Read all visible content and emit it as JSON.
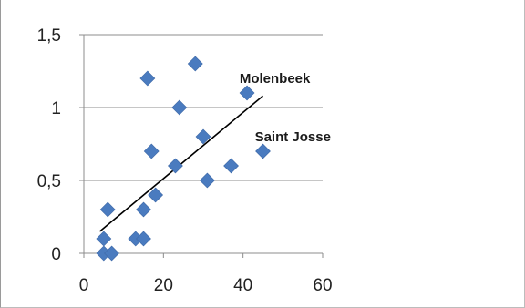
{
  "chart_data": {
    "type": "scatter",
    "title": "",
    "xlabel": "",
    "ylabel": "",
    "xlim": [
      0,
      60
    ],
    "ylim": [
      0,
      1.5
    ],
    "x_ticks": [
      {
        "value": 0,
        "label": "0"
      },
      {
        "value": 20,
        "label": "20"
      },
      {
        "value": 40,
        "label": "40"
      },
      {
        "value": 60,
        "label": "60"
      }
    ],
    "y_ticks": [
      {
        "value": 0,
        "label": "0"
      },
      {
        "value": 0.5,
        "label": "0,5"
      },
      {
        "value": 1,
        "label": "1"
      },
      {
        "value": 1.5,
        "label": "1,5"
      }
    ],
    "grid": {
      "horizontal": true,
      "vertical": false
    },
    "legend": "none",
    "marker_color": "#4a7bbf",
    "trendline_color": "#000000",
    "series": [
      {
        "points": [
          {
            "x": 5,
            "y": 0
          },
          {
            "x": 7,
            "y": 0
          },
          {
            "x": 5,
            "y": 0.1
          },
          {
            "x": 13,
            "y": 0.1
          },
          {
            "x": 15,
            "y": 0.1
          },
          {
            "x": 6,
            "y": 0.3
          },
          {
            "x": 15,
            "y": 0.3
          },
          {
            "x": 18,
            "y": 0.4
          },
          {
            "x": 23,
            "y": 0.6
          },
          {
            "x": 17,
            "y": 0.7
          },
          {
            "x": 31,
            "y": 0.5
          },
          {
            "x": 37,
            "y": 0.6
          },
          {
            "x": 45,
            "y": 0.7
          },
          {
            "x": 30,
            "y": 0.8
          },
          {
            "x": 24,
            "y": 1.0
          },
          {
            "x": 16,
            "y": 1.2
          },
          {
            "x": 41,
            "y": 1.1
          },
          {
            "x": 28,
            "y": 1.3
          }
        ]
      }
    ],
    "trendline": {
      "x": [
        4,
        45
      ],
      "y": [
        0.15,
        1.08
      ]
    },
    "annotations": [
      {
        "text": "Molenbeek",
        "x": 48,
        "y": 1.2
      },
      {
        "text": "Saint Josse",
        "x": 52.5,
        "y": 0.8
      }
    ]
  }
}
